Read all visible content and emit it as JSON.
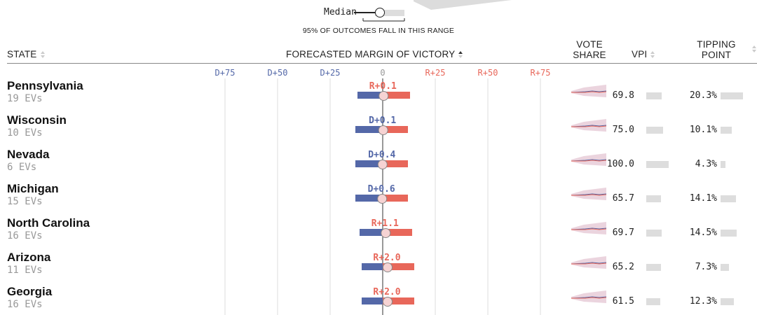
{
  "legend": {
    "median_label": "Median",
    "range_caption": "95% OF OUTCOMES FALL IN THIS RANGE"
  },
  "headers": {
    "state": "STATE",
    "margin": "FORECASTED MARGIN OF VICTORY",
    "vote_share_line1": "VOTE",
    "vote_share_line2": "SHARE",
    "vpi": "VPI",
    "tipping_line1": "TIPPING",
    "tipping_line2": "POINT"
  },
  "colors": {
    "dem": "#5468a8",
    "rep": "#e8675a",
    "grid": "#dddddd",
    "bar_gray": "#dddddd",
    "spark_band": "#e8cdd8"
  },
  "chart_data": {
    "type": "range",
    "x_ticks": [
      {
        "value": -75,
        "label": "D+75"
      },
      {
        "value": -50,
        "label": "D+50"
      },
      {
        "value": -25,
        "label": "D+25"
      },
      {
        "value": 0,
        "label": "0"
      },
      {
        "value": 25,
        "label": "R+25"
      },
      {
        "value": 50,
        "label": "R+50"
      },
      {
        "value": 75,
        "label": "R+75"
      }
    ],
    "x_range": [
      -75,
      75
    ],
    "rows": [
      {
        "state": "Pennsylvania",
        "evs": "19 EVs",
        "median": 0.1,
        "low": -12,
        "high": 13,
        "margin_label": "R+0.1",
        "vpi": "69.8",
        "vpi_value": 69.8,
        "tipping": "20.3%",
        "tipping_value": 20.3
      },
      {
        "state": "Wisconsin",
        "evs": "10 EVs",
        "median": -0.1,
        "low": -13,
        "high": 12,
        "margin_label": "D+0.1",
        "vpi": "75.0",
        "vpi_value": 75.0,
        "tipping": "10.1%",
        "tipping_value": 10.1
      },
      {
        "state": "Nevada",
        "evs": "6 EVs",
        "median": -0.4,
        "low": -13,
        "high": 12,
        "margin_label": "D+0.4",
        "vpi": "100.0",
        "vpi_value": 100.0,
        "tipping": "4.3%",
        "tipping_value": 4.3
      },
      {
        "state": "Michigan",
        "evs": "15 EVs",
        "median": -0.6,
        "low": -13,
        "high": 12,
        "margin_label": "D+0.6",
        "vpi": "65.7",
        "vpi_value": 65.7,
        "tipping": "14.1%",
        "tipping_value": 14.1
      },
      {
        "state": "North Carolina",
        "evs": "16 EVs",
        "median": 1.1,
        "low": -11,
        "high": 14,
        "margin_label": "R+1.1",
        "vpi": "69.7",
        "vpi_value": 69.7,
        "tipping": "14.5%",
        "tipping_value": 14.5
      },
      {
        "state": "Arizona",
        "evs": "11 EVs",
        "median": 2.0,
        "low": -10,
        "high": 15,
        "margin_label": "R+2.0",
        "vpi": "65.2",
        "vpi_value": 65.2,
        "tipping": "7.3%",
        "tipping_value": 7.3
      },
      {
        "state": "Georgia",
        "evs": "16 EVs",
        "median": 2.0,
        "low": -10,
        "high": 15,
        "margin_label": "R+2.0",
        "vpi": "61.5",
        "vpi_value": 61.5,
        "tipping": "12.3%",
        "tipping_value": 12.3
      }
    ]
  }
}
